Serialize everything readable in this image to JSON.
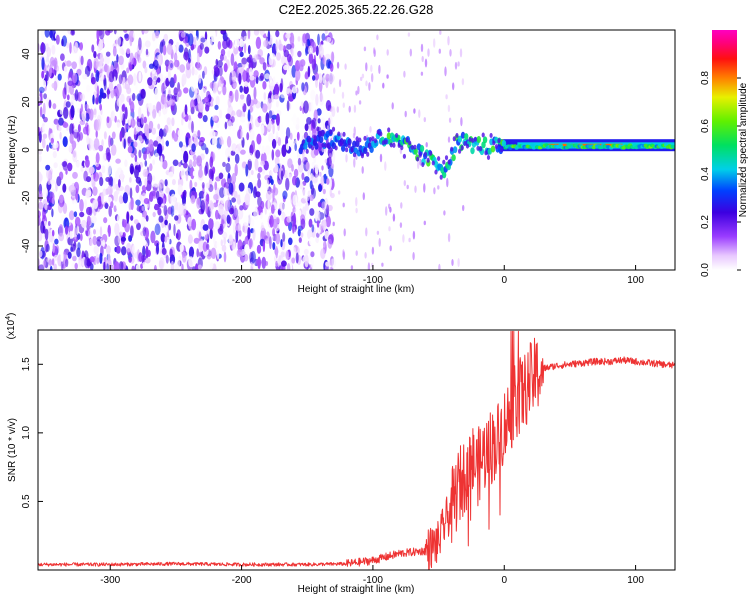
{
  "figure": {
    "title": "C2E2.2025.365.22.26.G28"
  },
  "chart_data": [
    {
      "type": "heatmap",
      "xlabel": "Height of straight line (km)",
      "ylabel": "Frequency (Hz)",
      "xlim": [
        -355,
        130
      ],
      "ylim": [
        -50,
        50
      ],
      "xticks": [
        -300,
        -200,
        -100,
        0,
        100
      ],
      "yticks": [
        -40,
        -20,
        0,
        20,
        40
      ],
      "grid": false,
      "colorbar": {
        "label": "Normalized spectral amplitude",
        "range": [
          0,
          1
        ],
        "ticks": [
          0.0,
          0.2,
          0.4,
          0.6,
          0.8
        ],
        "colormap": "rainbow (white-purple-blue-cyan-green-yellow-red-magenta)"
      },
      "regions": [
        {
          "name": "noise",
          "x_range": [
            -355,
            -130
          ],
          "y_range": [
            -50,
            50
          ],
          "amplitude": [
            0.0,
            0.3
          ]
        },
        {
          "name": "signal",
          "x_range": [
            -155,
            130
          ],
          "frequency_hz": [
            2,
            5,
            3,
            0,
            5,
            2,
            -8,
            4,
            2,
            1,
            1.5,
            1.5,
            1.5,
            1.5
          ],
          "frequency_x": [
            -155,
            -140,
            -120,
            -110,
            -95,
            -75,
            -45,
            -35,
            -20,
            0,
            25,
            60,
            100,
            130
          ],
          "amplitude": [
            0.3,
            0.75
          ]
        }
      ]
    },
    {
      "type": "line",
      "xlabel": "Height of straight line (km)",
      "ylabel": "SNR (10 * v/v)",
      "yscale_label": "(x10",
      "yscale_exp": "4",
      "xlim": [
        -355,
        130
      ],
      "ylim": [
        0,
        17500
      ],
      "xticks": [
        -300,
        -200,
        -100,
        0,
        100
      ],
      "yticks": [
        5000,
        10000,
        15000
      ],
      "ytick_labels": [
        "0.5",
        "1.0",
        "1.5"
      ],
      "grid": false,
      "series": [
        {
          "color": "#ee3333",
          "x": [
            -355,
            -300,
            -250,
            -200,
            -150,
            -120,
            -100,
            -80,
            -60,
            -50,
            -45,
            -40,
            -35,
            -30,
            -25,
            -20,
            -15,
            -10,
            -5,
            0,
            5,
            10,
            15,
            20,
            25,
            30,
            40,
            50,
            60,
            70,
            80,
            90,
            100,
            110,
            120,
            130
          ],
          "y": [
            400,
            400,
            450,
            400,
            400,
            450,
            700,
            1200,
            1400,
            2000,
            3500,
            4500,
            6000,
            7000,
            8000,
            7500,
            8500,
            9000,
            9500,
            10500,
            11500,
            12500,
            13000,
            13800,
            14300,
            14700,
            14900,
            15000,
            15100,
            15200,
            15200,
            15300,
            15200,
            15100,
            15000,
            14900
          ]
        }
      ]
    }
  ]
}
